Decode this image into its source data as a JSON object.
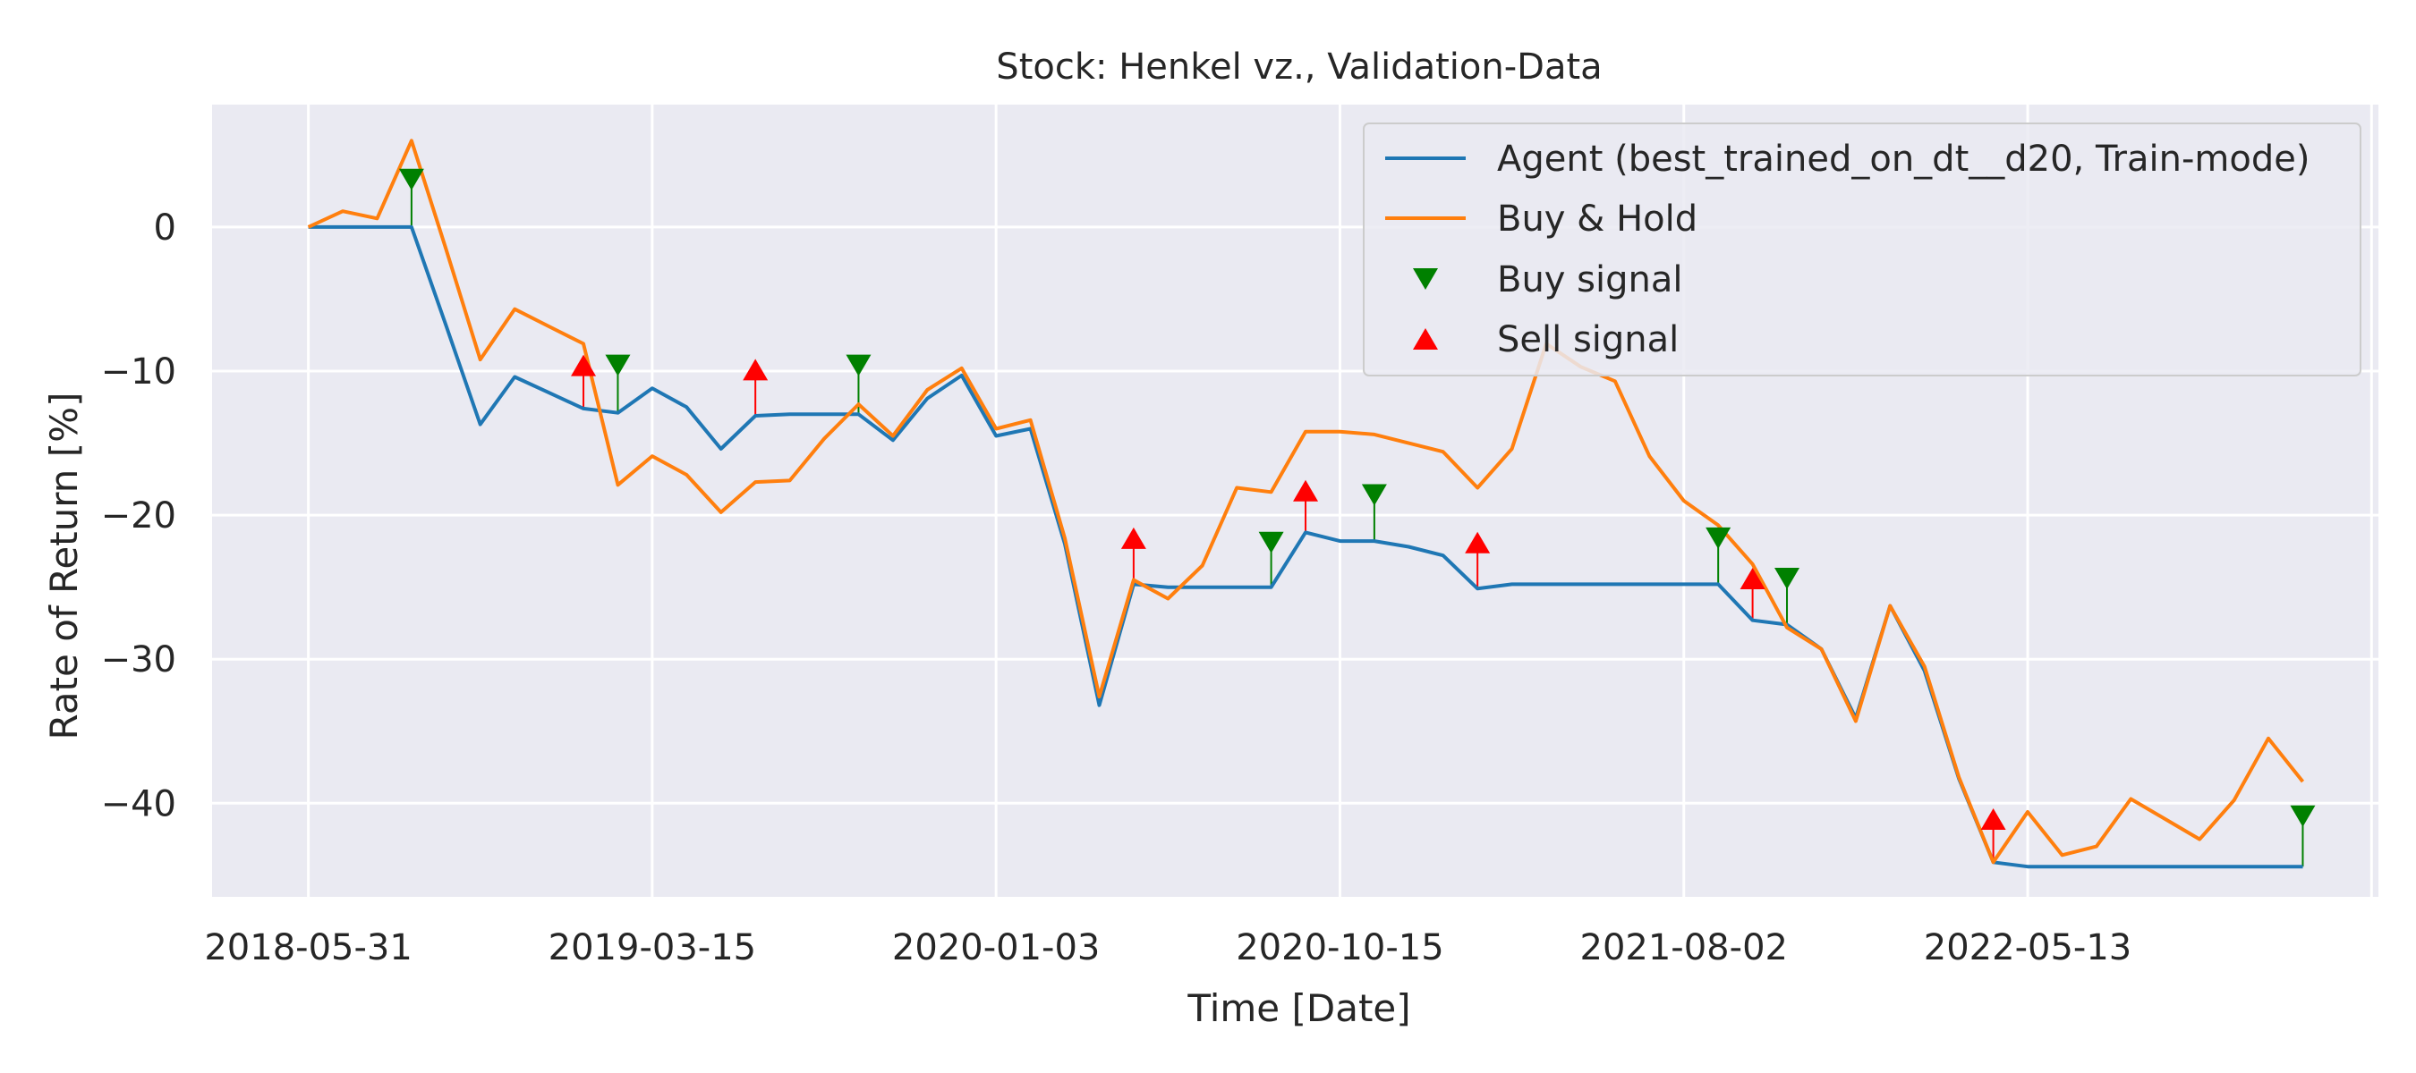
{
  "chart_data": {
    "type": "line",
    "title": "Stock: Henkel vz., Validation-Data",
    "xlabel": "Time [Date]",
    "ylabel": "Rate of Return [%]",
    "x_tick_labels": [
      "2018-05-31",
      "2019-03-15",
      "2020-01-03",
      "2020-10-15",
      "2021-08-02",
      "2022-05-13"
    ],
    "x_tick_positions": [
      0,
      10,
      20,
      30,
      40,
      50
    ],
    "y_ticks": [
      0,
      -10,
      -20,
      -30,
      -40
    ],
    "ylim": [
      -46.5,
      8.5
    ],
    "xlim": [
      -2.8,
      60.2
    ],
    "grid": true,
    "legend_position": "top-right",
    "background_color": "#eaeaf2",
    "grid_color": "#ffffff",
    "series": [
      {
        "name": "Agent (best_trained_on_dt__d20, Train-mode)",
        "color": "#1f77b4",
        "values": [
          0,
          0,
          0,
          0,
          -6.8,
          -13.7,
          -10.4,
          -11.5,
          -12.6,
          -12.9,
          -11.2,
          -12.5,
          -15.4,
          -13.1,
          -13.0,
          -13.0,
          -13.0,
          -14.8,
          -11.9,
          -10.3,
          -14.5,
          -14.0,
          -22.0,
          -33.2,
          -24.8,
          -25.0,
          -25.0,
          -25.0,
          -25.0,
          -21.2,
          -21.8,
          -21.8,
          -22.2,
          -22.8,
          -25.1,
          -24.8,
          -24.8,
          -24.8,
          -24.8,
          -24.8,
          -24.8,
          -24.8,
          -27.3,
          -27.6,
          -29.3,
          -34.1,
          -26.3,
          -30.8,
          -38.3,
          -44.1,
          -44.4,
          -44.4,
          -44.4,
          -44.4,
          -44.4,
          -44.4,
          -44.4,
          -44.4,
          -44.4
        ]
      },
      {
        "name": "Buy & Hold",
        "color": "#ff7f0e",
        "values": [
          0,
          1.1,
          0.6,
          6.0,
          -1.5,
          -9.2,
          -5.7,
          -6.9,
          -8.1,
          -17.9,
          -15.9,
          -17.2,
          -19.8,
          -17.7,
          -17.6,
          -14.7,
          -12.3,
          -14.5,
          -11.3,
          -9.8,
          -14.0,
          -13.4,
          -21.6,
          -32.6,
          -24.5,
          -25.8,
          -23.5,
          -18.1,
          -18.4,
          -14.2,
          -14.2,
          -14.4,
          -15.0,
          -15.6,
          -18.1,
          -15.4,
          -8.1,
          -9.7,
          -10.7,
          -15.9,
          -19.0,
          -20.7,
          -23.4,
          -27.8,
          -29.3,
          -34.3,
          -26.3,
          -30.5,
          -38.2,
          -44.1,
          -40.6,
          -43.6,
          -43.0,
          -39.7,
          -41.1,
          -42.5,
          -39.8,
          -35.5,
          -38.5
        ]
      }
    ],
    "buy_signals": {
      "name": "Buy signal",
      "color": "#008000",
      "points": [
        {
          "x": 3,
          "y": 3.3
        },
        {
          "x": 9,
          "y": -9.6
        },
        {
          "x": 16,
          "y": -9.6
        },
        {
          "x": 28,
          "y": -21.9
        },
        {
          "x": 31,
          "y": -18.6
        },
        {
          "x": 41,
          "y": -21.6
        },
        {
          "x": 43,
          "y": -24.4
        },
        {
          "x": 58,
          "y": -40.9
        }
      ]
    },
    "sell_signals": {
      "name": "Sell signal",
      "color": "#ff0000",
      "points": [
        {
          "x": 8,
          "y": -9.6
        },
        {
          "x": 13,
          "y": -9.9
        },
        {
          "x": 24,
          "y": -21.6
        },
        {
          "x": 29,
          "y": -18.3
        },
        {
          "x": 34,
          "y": -21.9
        },
        {
          "x": 42,
          "y": -24.4
        },
        {
          "x": 49,
          "y": -41.1
        }
      ]
    }
  }
}
